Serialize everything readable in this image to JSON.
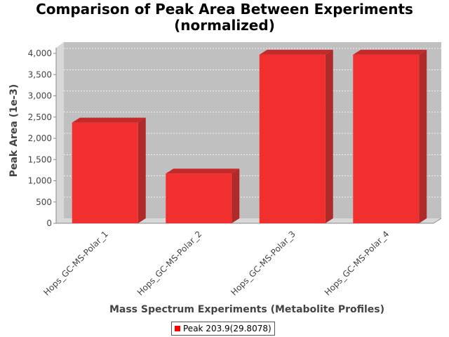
{
  "chart_data": {
    "type": "bar",
    "title_line1": "Comparison of Peak Area Between Experiments",
    "title_line2": "(normalized)",
    "xlabel": "Mass Spectrum Experiments (Metabolite Profiles)",
    "ylabel": "Peak Area (1e-3)",
    "categories": [
      "Hops_GC-MS-Polar_1",
      "Hops_GC-MS-Polar_2",
      "Hops_GC-MS-Polar_3",
      "Hops_GC-MS-Polar_4"
    ],
    "series": [
      {
        "name": "Peak 203.9(29.8078)",
        "values": [
          2370,
          1170,
          3970,
          3970
        ]
      }
    ],
    "ylim": [
      0,
      4000
    ],
    "yticks": [
      0,
      500,
      1000,
      1500,
      2000,
      2500,
      3000,
      3500,
      4000
    ],
    "ytick_labels": [
      "0",
      "500",
      "1,000",
      "1,500",
      "2,000",
      "2,500",
      "3,000",
      "3,500",
      "4,000"
    ],
    "grid": true,
    "render_style": "3d",
    "legend_position": "bottom",
    "colors": {
      "bar_front": "#f22f2f",
      "bar_side": "#b02a2a",
      "bar_top": "#c42a2a",
      "plot_background": "#c0c0c0",
      "wall_side": "#d8d8d8",
      "floor": "#d8d8d8",
      "legend_swatch": "#ff0000"
    }
  }
}
